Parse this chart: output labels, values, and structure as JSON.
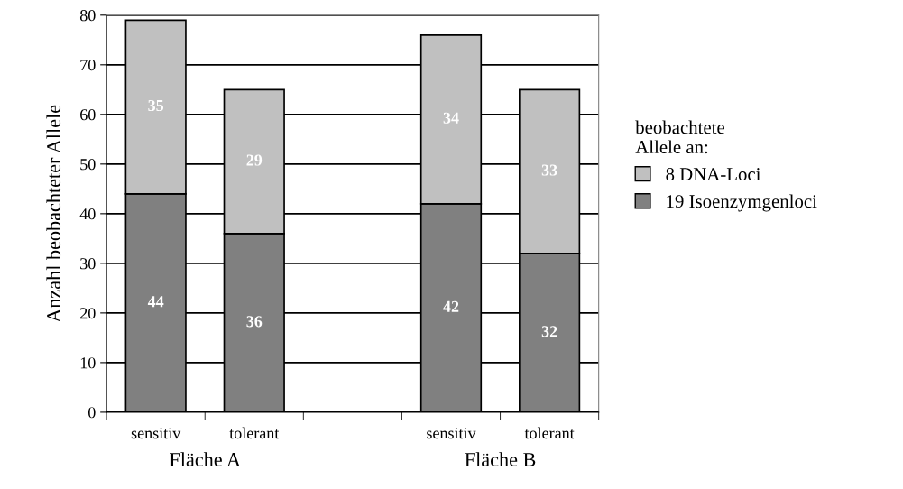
{
  "chart_data": {
    "type": "bar",
    "stacked": true,
    "ylabel": "Anzahl beobachteter Allele",
    "categories": [
      "sensitiv",
      "tolerant",
      null,
      "sensitiv",
      "tolerant"
    ],
    "series": [
      {
        "name": "19 Isoenzymgenloci",
        "color": "#808080",
        "values": [
          44,
          36,
          null,
          42,
          32
        ]
      },
      {
        "name": "8 DNA-Loci",
        "color": "#c0c0c0",
        "values": [
          35,
          29,
          null,
          34,
          33
        ]
      }
    ],
    "ylim": [
      0,
      80
    ],
    "yticks": [
      0,
      10,
      20,
      30,
      40,
      50,
      60,
      70,
      80
    ],
    "grid": "y",
    "legend": "right",
    "legend_title": "beobachtete\nAllele an:",
    "data_labels": true,
    "annotations": [
      "Fläche A",
      "Fläche B"
    ]
  }
}
